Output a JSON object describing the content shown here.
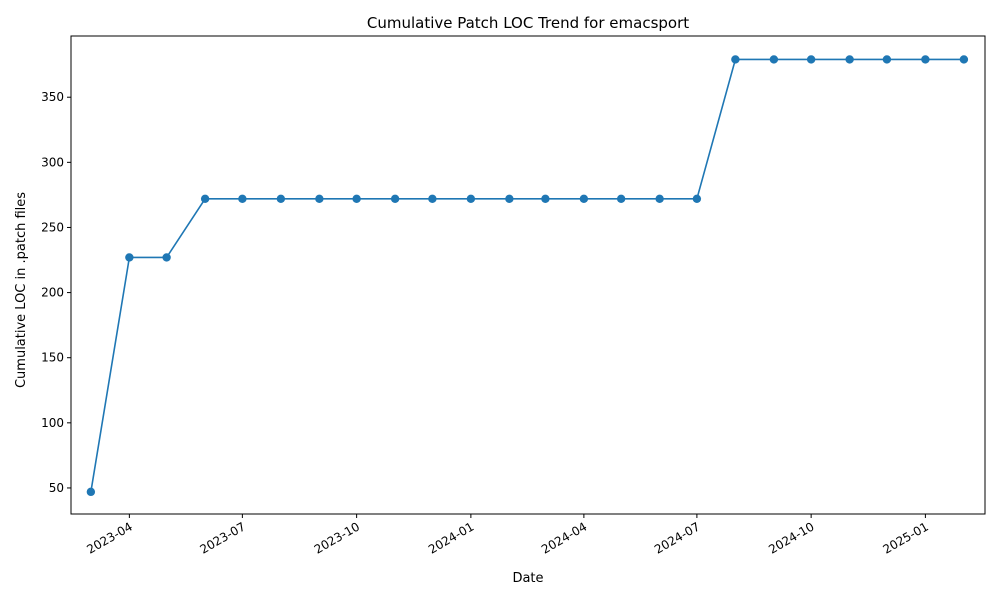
{
  "chart_data": {
    "type": "line",
    "title": "Cumulative Patch LOC Trend for emacsport",
    "xlabel": "Date",
    "ylabel": "Cumulative LOC in .patch files",
    "x_ticks": [
      "2023-04",
      "2023-07",
      "2023-10",
      "2024-01",
      "2024-04",
      "2024-07",
      "2024-10",
      "2025-01"
    ],
    "y_ticks": [
      50,
      100,
      150,
      200,
      250,
      300,
      350
    ],
    "xlim": [
      "2023-02-13",
      "2025-02-18"
    ],
    "ylim": [
      30,
      397
    ],
    "grid": false,
    "legend": "none",
    "color": "#1f77b4",
    "x": [
      "2023-03-01",
      "2023-04-01",
      "2023-05-01",
      "2023-06-01",
      "2023-07-01",
      "2023-08-01",
      "2023-09-01",
      "2023-10-01",
      "2023-11-01",
      "2023-12-01",
      "2024-01-01",
      "2024-02-01",
      "2024-03-01",
      "2024-04-01",
      "2024-05-01",
      "2024-06-01",
      "2024-07-01",
      "2024-08-01",
      "2024-09-01",
      "2024-10-01",
      "2024-11-01",
      "2024-12-01",
      "2025-01-01",
      "2025-02-01"
    ],
    "values": [
      47,
      227,
      227,
      272,
      272,
      272,
      272,
      272,
      272,
      272,
      272,
      272,
      272,
      272,
      272,
      272,
      272,
      379,
      379,
      379,
      379,
      379,
      379,
      379
    ]
  }
}
